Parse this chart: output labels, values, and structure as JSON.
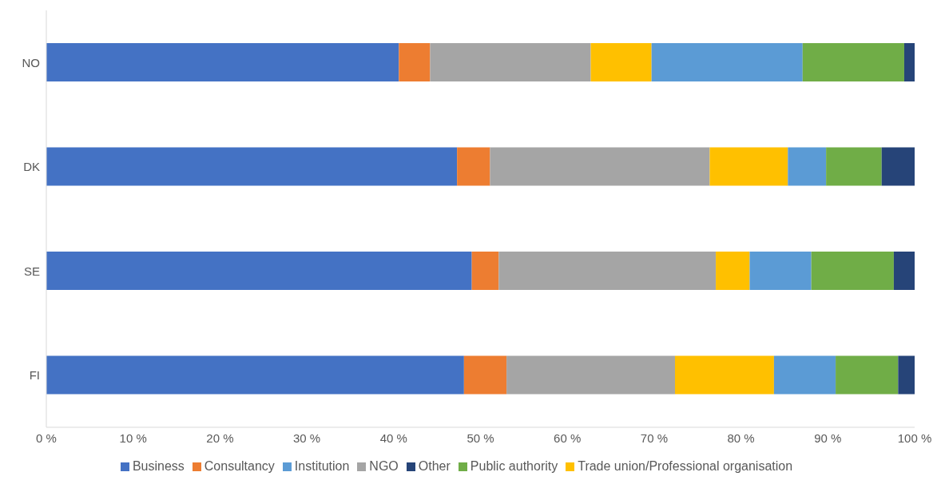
{
  "chart_data": {
    "type": "bar",
    "orientation": "horizontal",
    "stacked": true,
    "categories": [
      "NO",
      "DK",
      "SE",
      "FI"
    ],
    "series": [
      {
        "name": "Business",
        "color": "#4472c4",
        "values": [
          40.6,
          47.3,
          49.0,
          48.1
        ]
      },
      {
        "name": "Consultancy",
        "color": "#ed7d31",
        "values": [
          3.6,
          3.8,
          3.1,
          4.9
        ]
      },
      {
        "name": "NGO",
        "color": "#a5a5a5",
        "values": [
          18.5,
          25.3,
          25.0,
          19.4
        ]
      },
      {
        "name": "Trade union/Professional organisation",
        "color": "#ffc000",
        "values": [
          7.0,
          9.0,
          3.9,
          11.4
        ]
      },
      {
        "name": "Institution",
        "color": "#5b9bd5",
        "values": [
          17.4,
          4.4,
          7.1,
          7.1
        ]
      },
      {
        "name": "Public authority",
        "color": "#70ad47",
        "values": [
          11.7,
          6.4,
          9.5,
          7.2
        ]
      },
      {
        "name": "Other",
        "color": "#264478",
        "values": [
          1.2,
          3.8,
          2.4,
          1.9
        ]
      }
    ],
    "xlim": [
      0,
      100
    ],
    "xticks": [
      {
        "value": 0,
        "label": "0 %"
      },
      {
        "value": 10,
        "label": "10 %"
      },
      {
        "value": 20,
        "label": "20 %"
      },
      {
        "value": 30,
        "label": "30 %"
      },
      {
        "value": 40,
        "label": "40 %"
      },
      {
        "value": 50,
        "label": "50 %"
      },
      {
        "value": 60,
        "label": "60 %"
      },
      {
        "value": 70,
        "label": "70 %"
      },
      {
        "value": 80,
        "label": "80 %"
      },
      {
        "value": 90,
        "label": "90 %"
      },
      {
        "value": 100,
        "label": "100 %"
      }
    ],
    "grid": false,
    "legend": "bottom"
  }
}
